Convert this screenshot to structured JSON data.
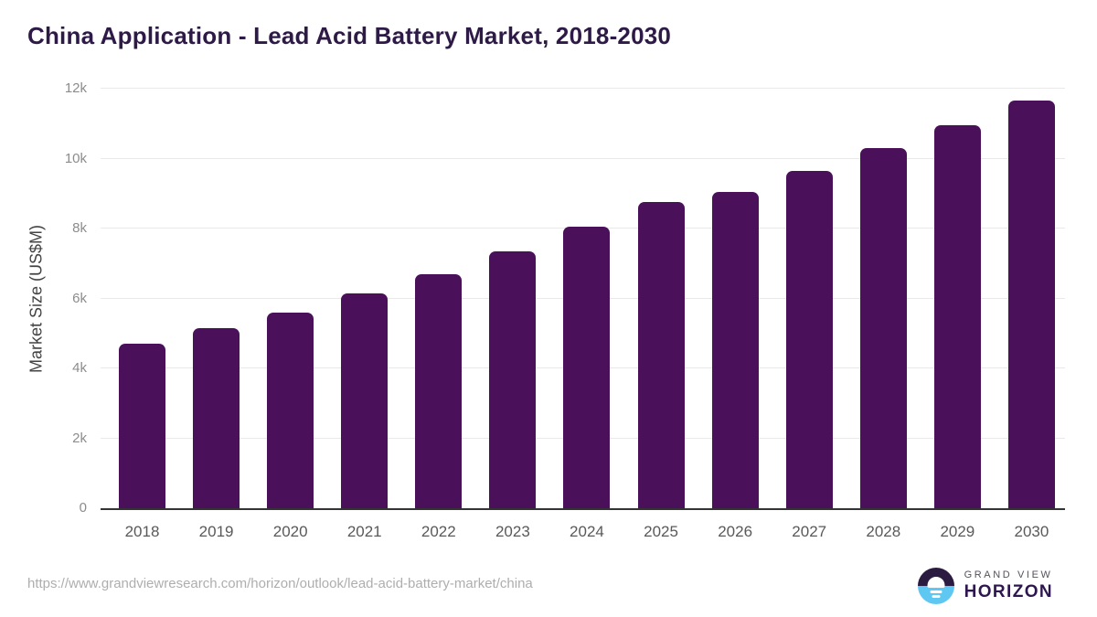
{
  "title": "China Application - Lead Acid Battery Market, 2018-2030",
  "chart_data": {
    "type": "bar",
    "title": "China Application - Lead Acid Battery Market, 2018-2030",
    "categories": [
      "2018",
      "2019",
      "2020",
      "2021",
      "2022",
      "2023",
      "2024",
      "2025",
      "2026",
      "2027",
      "2028",
      "2029",
      "2030"
    ],
    "values": [
      4700,
      5150,
      5600,
      6150,
      6700,
      7350,
      8050,
      8750,
      9050,
      9650,
      10300,
      10950,
      11650
    ],
    "xlabel": "",
    "ylabel": "Market Size (US$M)",
    "ylim": [
      0,
      12000
    ],
    "yticks": [
      {
        "value": 0,
        "label": "0"
      },
      {
        "value": 2000,
        "label": "2k"
      },
      {
        "value": 4000,
        "label": "4k"
      },
      {
        "value": 6000,
        "label": "6k"
      },
      {
        "value": 8000,
        "label": "8k"
      },
      {
        "value": 10000,
        "label": "10k"
      },
      {
        "value": 12000,
        "label": "12k"
      }
    ],
    "grid": true,
    "legend": false,
    "bar_color": "#4a115a"
  },
  "footer": {
    "source_url": "https://www.grandviewresearch.com/horizon/outlook/lead-acid-battery-market/china",
    "logo": {
      "line1": "GRAND VIEW",
      "line2": "HORIZON"
    }
  },
  "colors": {
    "bar": "#4a115a",
    "title": "#2e1a47",
    "gridline": "#e9e9e9",
    "axis_line": "#343434",
    "logo_top": "#2b1b41",
    "logo_bottom": "#5ec7f2"
  }
}
